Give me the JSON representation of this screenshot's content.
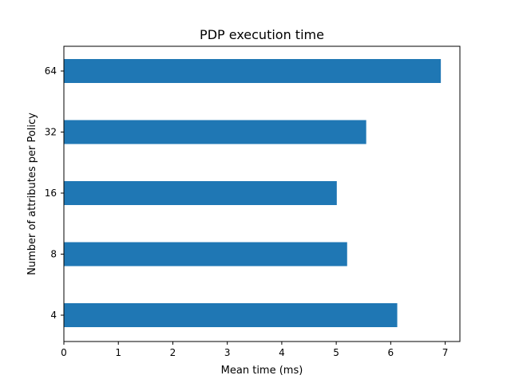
{
  "chart_data": {
    "type": "bar",
    "orientation": "horizontal",
    "title": "PDP execution time",
    "xlabel": "Mean time (ms)",
    "ylabel": "Number of attributes per Policy",
    "categories": [
      "4",
      "8",
      "16",
      "32",
      "64"
    ],
    "values": [
      6.12,
      5.2,
      5.01,
      5.55,
      6.92
    ],
    "xlim": [
      0,
      7.27
    ],
    "xticks": [
      "0",
      "1",
      "2",
      "3",
      "4",
      "5",
      "6",
      "7"
    ],
    "bar_color": "#1f77b4",
    "grid": false,
    "legend": "none"
  }
}
